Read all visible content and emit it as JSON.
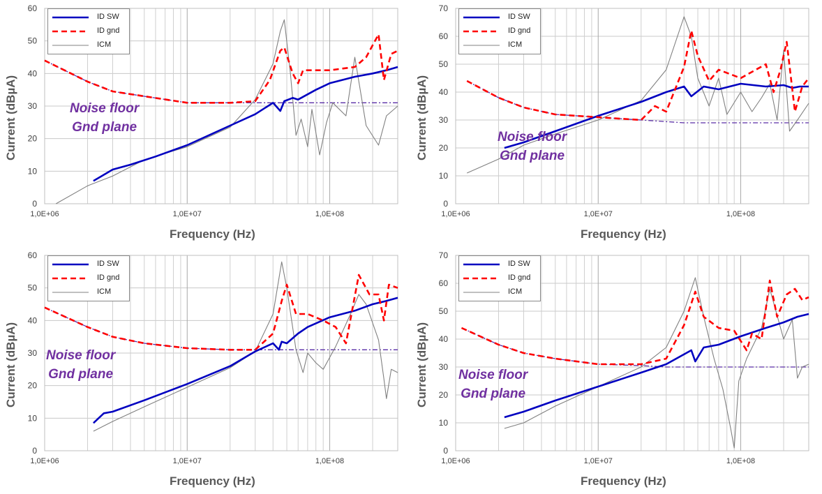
{
  "chart_data": [
    {
      "type": "line",
      "xlabel": "Frequency (Hz)",
      "ylabel": "Current (dBµA)",
      "x_scale": "log",
      "xlim": [
        1000000,
        300000000
      ],
      "ylim": [
        0,
        60
      ],
      "y_ticks": [
        "0",
        "10",
        "20",
        "30",
        "40",
        "50",
        "60"
      ],
      "x_tick_labels": [
        "1,0E+06",
        "1,0E+07",
        "1,0E+08"
      ],
      "grid": true,
      "legend_position": "top-left",
      "legend": [
        "ID SW",
        "ID gnd",
        "ICM"
      ],
      "annotation": [
        "Noise floor",
        "Gnd plane"
      ],
      "series": [
        {
          "name": "ID SW",
          "color": "#0000c0",
          "style": "solid",
          "x": [
            2200000.0,
            3000000.0,
            4000000.0,
            6000000.0,
            10000000.0,
            15000000.0,
            20000000.0,
            30000000.0,
            40000000.0,
            45000000.0,
            48000000.0,
            55000000.0,
            60000000.0,
            80000000.0,
            100000000.0,
            150000000.0,
            200000000.0,
            250000000.0,
            300000000.0
          ],
          "y": [
            7,
            10.5,
            12,
            14.5,
            18,
            21.5,
            24,
            27.5,
            31,
            28.5,
            31.5,
            32.5,
            32,
            35,
            37,
            39,
            40,
            41,
            42
          ]
        },
        {
          "name": "ID gnd",
          "color": "#ff0000",
          "style": "dashed",
          "x": [
            1000000.0,
            2000000.0,
            3000000.0,
            5000000.0,
            10000000.0,
            20000000.0,
            30000000.0,
            38000000.0,
            45000000.0,
            48000000.0,
            55000000.0,
            60000000.0,
            65000000.0,
            80000000.0,
            100000000.0,
            150000000.0,
            180000000.0,
            220000000.0,
            240000000.0,
            270000000.0,
            300000000.0
          ],
          "y": [
            44,
            37.5,
            34.5,
            33,
            31,
            31,
            31.5,
            38,
            47,
            48,
            40,
            37,
            41,
            41,
            41,
            42,
            45,
            52,
            38,
            46,
            47
          ]
        },
        {
          "name": "ICM",
          "color": "#808080",
          "style": "thin",
          "x": [
            1200000.0,
            2000000.0,
            3000000.0,
            5000000.0,
            10000000.0,
            20000000.0,
            30000000.0,
            40000000.0,
            45000000.0,
            48000000.0,
            53000000.0,
            58000000.0,
            63000000.0,
            70000000.0,
            75000000.0,
            85000000.0,
            95000000.0,
            105000000.0,
            130000000.0,
            150000000.0,
            180000000.0,
            220000000.0,
            250000000.0,
            300000000.0
          ],
          "y": [
            0,
            5.5,
            8.5,
            13.5,
            17.5,
            23.5,
            32,
            43,
            53,
            56.5,
            40,
            21,
            26,
            17.5,
            29,
            15,
            25,
            31,
            27,
            45,
            24,
            18,
            27,
            30
          ]
        },
        {
          "name": "Noise floor",
          "color": "#5a2ea6",
          "style": "dashdot",
          "x": [
            1000000.0,
            2000000.0,
            3000000.0,
            5000000.0,
            10000000.0,
            20000000.0,
            30000000.0,
            50000000.0,
            100000000.0,
            300000000.0
          ],
          "y": [
            44,
            37.5,
            34.5,
            33,
            31,
            31,
            31,
            31,
            31,
            31
          ]
        }
      ]
    },
    {
      "type": "line",
      "xlabel": "Frequency (Hz)",
      "ylabel": "Current (dBµA)",
      "x_scale": "log",
      "xlim": [
        1000000,
        300000000
      ],
      "ylim": [
        0,
        70
      ],
      "y_ticks": [
        "0",
        "10",
        "20",
        "30",
        "40",
        "50",
        "60",
        "70"
      ],
      "x_tick_labels": [
        "1,0E+06",
        "1,0E+07",
        "1,0E+08"
      ],
      "grid": true,
      "legend_position": "top-left",
      "legend": [
        "ID SW",
        "ID gnd",
        "ICM"
      ],
      "annotation": [
        "Noise floor",
        "Gnd plane"
      ],
      "series": [
        {
          "name": "ID SW",
          "color": "#0000c0",
          "style": "solid",
          "x": [
            2200000.0,
            3000000.0,
            5000000.0,
            10000000.0,
            20000000.0,
            30000000.0,
            40000000.0,
            45000000.0,
            55000000.0,
            70000000.0,
            100000000.0,
            150000000.0,
            200000000.0,
            230000000.0,
            260000000.0,
            300000000.0
          ],
          "y": [
            20,
            22,
            26,
            31.5,
            36.5,
            40,
            42,
            38.5,
            42,
            41,
            43,
            42,
            42.5,
            41.5,
            42,
            42
          ]
        },
        {
          "name": "ID gnd",
          "color": "#ff0000",
          "style": "dashed",
          "x": [
            1200000.0,
            2000000.0,
            3000000.0,
            5000000.0,
            10000000.0,
            20000000.0,
            25000000.0,
            30000000.0,
            40000000.0,
            45000000.0,
            50000000.0,
            60000000.0,
            70000000.0,
            100000000.0,
            150000000.0,
            170000000.0,
            190000000.0,
            210000000.0,
            240000000.0,
            270000000.0,
            300000000.0
          ],
          "y": [
            44,
            38,
            34.5,
            32,
            31,
            30,
            35,
            33,
            49,
            62,
            53,
            44,
            48,
            45,
            50,
            40,
            48,
            58,
            33,
            42,
            45
          ]
        },
        {
          "name": "ICM",
          "color": "#808080",
          "style": "thin",
          "x": [
            1200000.0,
            2000000.0,
            3000000.0,
            5000000.0,
            10000000.0,
            20000000.0,
            30000000.0,
            40000000.0,
            45000000.0,
            50000000.0,
            60000000.0,
            70000000.0,
            80000000.0,
            100000000.0,
            120000000.0,
            140000000.0,
            160000000.0,
            180000000.0,
            200000000.0,
            220000000.0,
            250000000.0,
            300000000.0
          ],
          "y": [
            11,
            16,
            21,
            25,
            30,
            37,
            48,
            67,
            60,
            45,
            35,
            45,
            32,
            40,
            33,
            38,
            43,
            30,
            55,
            26,
            30,
            36
          ]
        },
        {
          "name": "Noise floor",
          "color": "#5a2ea6",
          "style": "dashdot",
          "x": [
            1200000.0,
            2000000.0,
            3000000.0,
            5000000.0,
            10000000.0,
            20000000.0,
            40000000.0,
            100000000.0,
            300000000.0
          ],
          "y": [
            44,
            38,
            34.5,
            32,
            31,
            30,
            29,
            29,
            29
          ]
        }
      ]
    },
    {
      "type": "line",
      "xlabel": "Frequency (Hz)",
      "ylabel": "Current (dBµA)",
      "x_scale": "log",
      "xlim": [
        1000000,
        300000000
      ],
      "ylim": [
        0,
        60
      ],
      "y_ticks": [
        "0",
        "10",
        "20",
        "30",
        "40",
        "50",
        "60"
      ],
      "x_tick_labels": [
        "1,0E+06",
        "1,0E+07",
        "1,0E+08"
      ],
      "grid": true,
      "legend_position": "top-left",
      "legend": [
        "ID SW",
        "ID gnd",
        "ICM"
      ],
      "annotation": [
        "Noise floor",
        "Gnd plane"
      ],
      "series": [
        {
          "name": "ID SW",
          "color": "#0000c0",
          "style": "solid",
          "x": [
            2200000.0,
            2600000.0,
            3000000.0,
            5000000.0,
            10000000.0,
            20000000.0,
            30000000.0,
            40000000.0,
            44000000.0,
            46000000.0,
            50000000.0,
            60000000.0,
            70000000.0,
            100000000.0,
            150000000.0,
            200000000.0,
            250000000.0,
            300000000.0
          ],
          "y": [
            8.5,
            11.5,
            12,
            15.5,
            20.5,
            26,
            30.5,
            33,
            31,
            33.5,
            33,
            36,
            38,
            41,
            43,
            45,
            46,
            47
          ]
        },
        {
          "name": "ID gnd",
          "color": "#ff0000",
          "style": "dashed",
          "x": [
            1000000.0,
            2000000.0,
            3000000.0,
            5000000.0,
            10000000.0,
            20000000.0,
            30000000.0,
            40000000.0,
            46000000.0,
            50000000.0,
            58000000.0,
            70000000.0,
            90000000.0,
            110000000.0,
            130000000.0,
            160000000.0,
            190000000.0,
            220000000.0,
            240000000.0,
            260000000.0,
            300000000.0
          ],
          "y": [
            44,
            38,
            35,
            33,
            31.5,
            31,
            31,
            36,
            46,
            51,
            42,
            42,
            40,
            38,
            33,
            54,
            48,
            48,
            40,
            51,
            50
          ]
        },
        {
          "name": "ICM",
          "color": "#808080",
          "style": "thin",
          "x": [
            2200000.0,
            3000000.0,
            5000000.0,
            10000000.0,
            20000000.0,
            30000000.0,
            40000000.0,
            46000000.0,
            50000000.0,
            58000000.0,
            65000000.0,
            70000000.0,
            80000000.0,
            90000000.0,
            110000000.0,
            140000000.0,
            160000000.0,
            180000000.0,
            220000000.0,
            240000000.0,
            250000000.0,
            270000000.0,
            300000000.0
          ],
          "y": [
            6,
            9,
            13.5,
            19.5,
            25.5,
            30.5,
            42,
            58,
            50,
            31,
            24,
            30,
            27,
            25,
            32,
            42,
            48,
            45,
            34,
            22,
            16,
            25,
            24
          ]
        },
        {
          "name": "Noise floor",
          "color": "#5a2ea6",
          "style": "dashdot",
          "x": [
            1000000.0,
            2000000.0,
            3000000.0,
            5000000.0,
            10000000.0,
            20000000.0,
            30000000.0,
            50000000.0,
            100000000.0,
            300000000.0
          ],
          "y": [
            44,
            38,
            35,
            33,
            31.5,
            31,
            31,
            31,
            31,
            31
          ]
        }
      ]
    },
    {
      "type": "line",
      "xlabel": "Frequency (Hz)",
      "ylabel": "Current (dBµA)",
      "x_scale": "log",
      "xlim": [
        1000000,
        300000000
      ],
      "ylim": [
        0,
        70
      ],
      "y_ticks": [
        "0",
        "10",
        "20",
        "30",
        "40",
        "50",
        "60",
        "70"
      ],
      "x_tick_labels": [
        "1,0E+06",
        "1,0E+07",
        "1,0E+08"
      ],
      "grid": true,
      "legend_position": "top-left",
      "legend": [
        "ID SW",
        "ID gnd",
        "ICM"
      ],
      "annotation": [
        "Noise floor",
        "Gnd plane"
      ],
      "series": [
        {
          "name": "ID SW",
          "color": "#0000c0",
          "style": "solid",
          "x": [
            2200000.0,
            3000000.0,
            5000000.0,
            10000000.0,
            20000000.0,
            30000000.0,
            45000000.0,
            48000000.0,
            55000000.0,
            70000000.0,
            100000000.0,
            150000000.0,
            200000000.0,
            250000000.0,
            300000000.0
          ],
          "y": [
            12,
            14,
            18,
            23,
            28,
            31,
            36,
            32,
            37,
            38,
            41,
            44,
            46,
            48,
            49
          ]
        },
        {
          "name": "ID gnd",
          "color": "#ff0000",
          "style": "dashed",
          "x": [
            1100000.0,
            2000000.0,
            3000000.0,
            5000000.0,
            10000000.0,
            20000000.0,
            30000000.0,
            40000000.0,
            48000000.0,
            55000000.0,
            70000000.0,
            90000000.0,
            110000000.0,
            120000000.0,
            140000000.0,
            160000000.0,
            180000000.0,
            210000000.0,
            240000000.0,
            270000000.0,
            300000000.0
          ],
          "y": [
            44,
            38,
            35,
            33,
            31,
            31,
            33,
            45,
            57,
            48,
            44,
            43,
            36,
            42,
            40,
            61,
            48,
            56,
            58,
            54,
            55
          ]
        },
        {
          "name": "ICM",
          "color": "#808080",
          "style": "thin",
          "x": [
            2200000.0,
            3000000.0,
            5000000.0,
            10000000.0,
            20000000.0,
            30000000.0,
            40000000.0,
            48000000.0,
            55000000.0,
            65000000.0,
            75000000.0,
            85000000.0,
            90000000.0,
            97000000.0,
            110000000.0,
            140000000.0,
            160000000.0,
            200000000.0,
            230000000.0,
            250000000.0,
            270000000.0,
            300000000.0
          ],
          "y": [
            8,
            10,
            16,
            23,
            30,
            37,
            50,
            62,
            48,
            33,
            22,
            8,
            1,
            25,
            33,
            44,
            58,
            40,
            47,
            26,
            30,
            31
          ]
        },
        {
          "name": "Noise floor",
          "color": "#5a2ea6",
          "style": "dashdot",
          "x": [
            1100000.0,
            2000000.0,
            3000000.0,
            5000000.0,
            10000000.0,
            20000000.0,
            30000000.0,
            100000000.0,
            300000000.0
          ],
          "y": [
            44,
            38,
            35,
            33,
            31,
            30.5,
            30,
            30,
            30
          ]
        }
      ]
    }
  ]
}
